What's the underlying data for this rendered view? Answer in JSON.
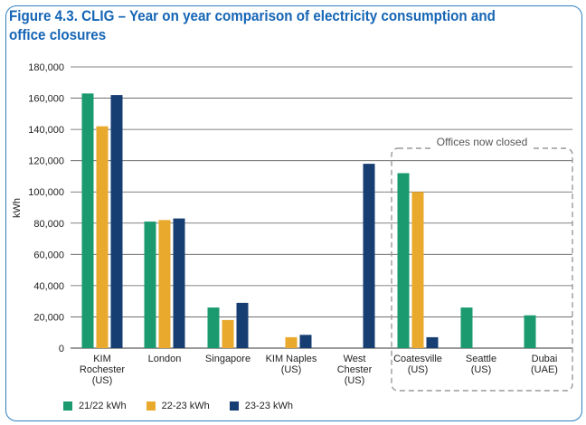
{
  "figure": {
    "title": "Figure 4.3. CLIG – Year on year comparison of electricity consumption and office closures"
  },
  "chart_data": {
    "type": "bar",
    "ylabel": "kWh",
    "xlabel": "",
    "ylim": [
      0,
      180000
    ],
    "yticks": [
      "0",
      "20,000",
      "40,000",
      "60,000",
      "80,000",
      "100,000",
      "120,000",
      "140,000",
      "160,000",
      "180,000"
    ],
    "grid": true,
    "legend_position": "bottom",
    "categories": [
      [
        "KIM",
        "Rochester",
        "(US)"
      ],
      [
        "London"
      ],
      [
        "Singapore"
      ],
      [
        "KIM Naples",
        "(US)"
      ],
      [
        "West",
        "Chester",
        "(US)"
      ],
      [
        "Coatesville",
        "(US)"
      ],
      [
        "Seattle",
        "(US)"
      ],
      [
        "Dubai",
        "(UAE)"
      ]
    ],
    "series": [
      {
        "name": "21/22 kWh",
        "color": "#1a9a6e",
        "values": [
          163000,
          81000,
          26000,
          null,
          null,
          112000,
          26000,
          21000
        ]
      },
      {
        "name": "22-23 kWh",
        "color": "#e8a92d",
        "values": [
          142000,
          82000,
          18000,
          7000,
          null,
          100000,
          null,
          null
        ]
      },
      {
        "name": "23-23 kWh",
        "color": "#173e73",
        "values": [
          162000,
          83000,
          29000,
          8500,
          118000,
          7000,
          null,
          null
        ]
      }
    ],
    "annotations": [
      {
        "text": "Offices now closed",
        "covers_categories": [
          5,
          6,
          7
        ],
        "style": "dashed-box"
      }
    ]
  }
}
